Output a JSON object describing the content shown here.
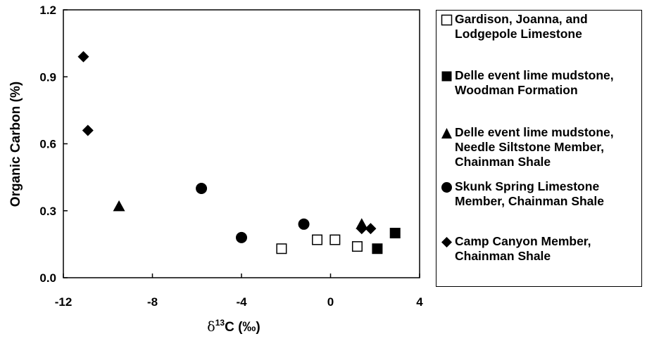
{
  "chart_data": {
    "type": "scatter",
    "xlabel_prefix": "δ",
    "xlabel_superscript": "13",
    "xlabel_suffix": "C (‰)",
    "ylabel": "Organic Carbon (%)",
    "xlim": [
      -12,
      4
    ],
    "ylim": [
      0,
      1.2
    ],
    "x_ticks": [
      -12,
      -8,
      -4,
      0,
      4
    ],
    "x_tick_labels": [
      "-12",
      "-8",
      "-4",
      "0",
      "4"
    ],
    "y_ticks": [
      0,
      0.3,
      0.6,
      0.9,
      1.2
    ],
    "y_tick_labels": [
      "0.0",
      "0.3",
      "0.6",
      "0.9",
      "1.2"
    ],
    "grid": false,
    "legend_position": "right",
    "series": [
      {
        "name": "Gardison, Joanna, and\nLodgepole Limestone",
        "marker": "open-square",
        "points": [
          [
            -2.2,
            0.13
          ],
          [
            -0.6,
            0.17
          ],
          [
            0.2,
            0.17
          ],
          [
            1.2,
            0.14
          ]
        ]
      },
      {
        "name": "Delle event lime mudstone,\nWoodman Formation",
        "marker": "filled-square",
        "points": [
          [
            2.1,
            0.13
          ],
          [
            2.9,
            0.2
          ]
        ]
      },
      {
        "name": "Delle event lime mudstone,\nNeedle Siltstone Member,\nChainman Shale",
        "marker": "filled-triangle",
        "points": [
          [
            -9.5,
            0.32
          ],
          [
            1.4,
            0.24
          ]
        ]
      },
      {
        "name": "Skunk Spring Limestone\nMember, Chainman Shale",
        "marker": "filled-circle",
        "points": [
          [
            -5.8,
            0.4
          ],
          [
            -4.0,
            0.18
          ],
          [
            -1.2,
            0.24
          ]
        ]
      },
      {
        "name": "Camp Canyon Member,\nChainman Shale",
        "marker": "filled-diamond",
        "points": [
          [
            -11.1,
            0.99
          ],
          [
            -10.9,
            0.66
          ],
          [
            1.4,
            0.22
          ],
          [
            1.8,
            0.22
          ]
        ]
      }
    ]
  }
}
